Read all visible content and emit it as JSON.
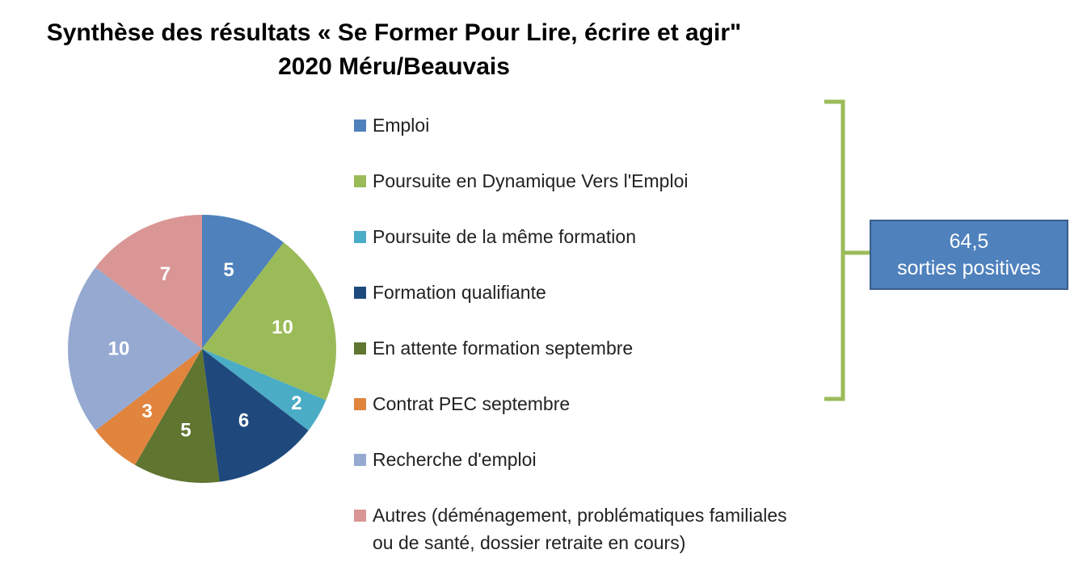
{
  "title": {
    "line1": "Synthèse des résultats « Se Former Pour Lire, écrire et agir\"",
    "line2": "2020  Méru/Beauvais"
  },
  "callout": {
    "value": "64,5",
    "label": "sorties positives"
  },
  "colors": {
    "bracket": "#9bbb59",
    "callout_fill": "#4f81bd",
    "callout_border": "#385d8a"
  },
  "chart_data": {
    "type": "pie",
    "title": "Synthèse des résultats « Se Former Pour Lire, écrire et agir\" 2020  Méru/Beauvais",
    "legend_position": "right",
    "slices": [
      {
        "label": "Emploi",
        "value": 5,
        "color": "#4f81bd"
      },
      {
        "label": "Poursuite en Dynamique Vers l'Emploi",
        "value": 10,
        "color": "#9bbb59"
      },
      {
        "label": "Poursuite de la même formation",
        "value": 2,
        "color": "#4bacc6"
      },
      {
        "label": "Formation qualifiante",
        "value": 6,
        "color": "#1f497d"
      },
      {
        "label": "En attente formation septembre",
        "value": 5,
        "color": "#5f7530"
      },
      {
        "label": "Contrat PEC septembre",
        "value": 3,
        "color": "#e0843e"
      },
      {
        "label": "Recherche d'emploi",
        "value": 10,
        "color": "#95a9d1"
      },
      {
        "label": "Autres (déménagement, problématiques familiales\nou de santé, dossier retraite en cours)",
        "value": 7,
        "color": "#d99694"
      }
    ]
  }
}
